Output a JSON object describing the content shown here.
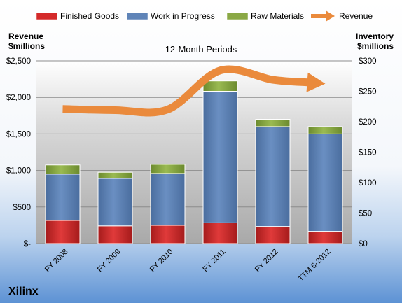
{
  "chart_data": {
    "type": "bar",
    "title": "12-Month Periods",
    "company": "Xilinx",
    "categories": [
      "FY 2008",
      "FY 2009",
      "FY 2010",
      "FY 2011",
      "FY 2012",
      "TTM 6-2012"
    ],
    "stacked": true,
    "series": [
      {
        "name": "Finished Goods",
        "axis": "right",
        "color": "#d42a2a",
        "values": [
          38,
          29,
          30,
          34,
          28,
          20
        ]
      },
      {
        "name": "Work in Progress",
        "axis": "right",
        "color": "#5f84b8",
        "values": [
          76,
          78,
          85,
          216,
          164,
          160
        ]
      },
      {
        "name": "Raw Materials",
        "axis": "right",
        "color": "#8aa845",
        "values": [
          15,
          10,
          15,
          17,
          12,
          12
        ]
      }
    ],
    "line_series": {
      "name": "Revenue",
      "axis": "left",
      "color": "#ea8a3c",
      "values": [
        1841,
        1825,
        1834,
        2369,
        2241,
        2187
      ]
    },
    "y_left": {
      "label_line1": "Revenue",
      "label_line2": "$millions",
      "range": [
        0,
        2500
      ],
      "ticks": [
        {
          "value": 0,
          "label": "$-"
        },
        {
          "value": 500,
          "label": "$500"
        },
        {
          "value": 1000,
          "label": "$1,000"
        },
        {
          "value": 1500,
          "label": "$1,500"
        },
        {
          "value": 2000,
          "label": "$2,000"
        },
        {
          "value": 2500,
          "label": "$2,500"
        }
      ]
    },
    "y_right": {
      "label_line1": "Inventory",
      "label_line2": "$millions",
      "range": [
        0,
        300
      ],
      "ticks": [
        {
          "value": 0,
          "label": "$0"
        },
        {
          "value": 50,
          "label": "$50"
        },
        {
          "value": 100,
          "label": "$100"
        },
        {
          "value": 150,
          "label": "$150"
        },
        {
          "value": 200,
          "label": "$200"
        },
        {
          "value": 250,
          "label": "$250"
        },
        {
          "value": 300,
          "label": "$300"
        }
      ]
    },
    "legend": [
      {
        "name": "Finished Goods",
        "kind": "bar",
        "color": "#d42a2a"
      },
      {
        "name": "Work in Progress",
        "kind": "bar",
        "color": "#5f84b8"
      },
      {
        "name": "Raw Materials",
        "kind": "bar",
        "color": "#8aa845"
      },
      {
        "name": "Revenue",
        "kind": "arrow",
        "color": "#ea8a3c"
      }
    ],
    "legend_position": "top",
    "grid": true
  }
}
